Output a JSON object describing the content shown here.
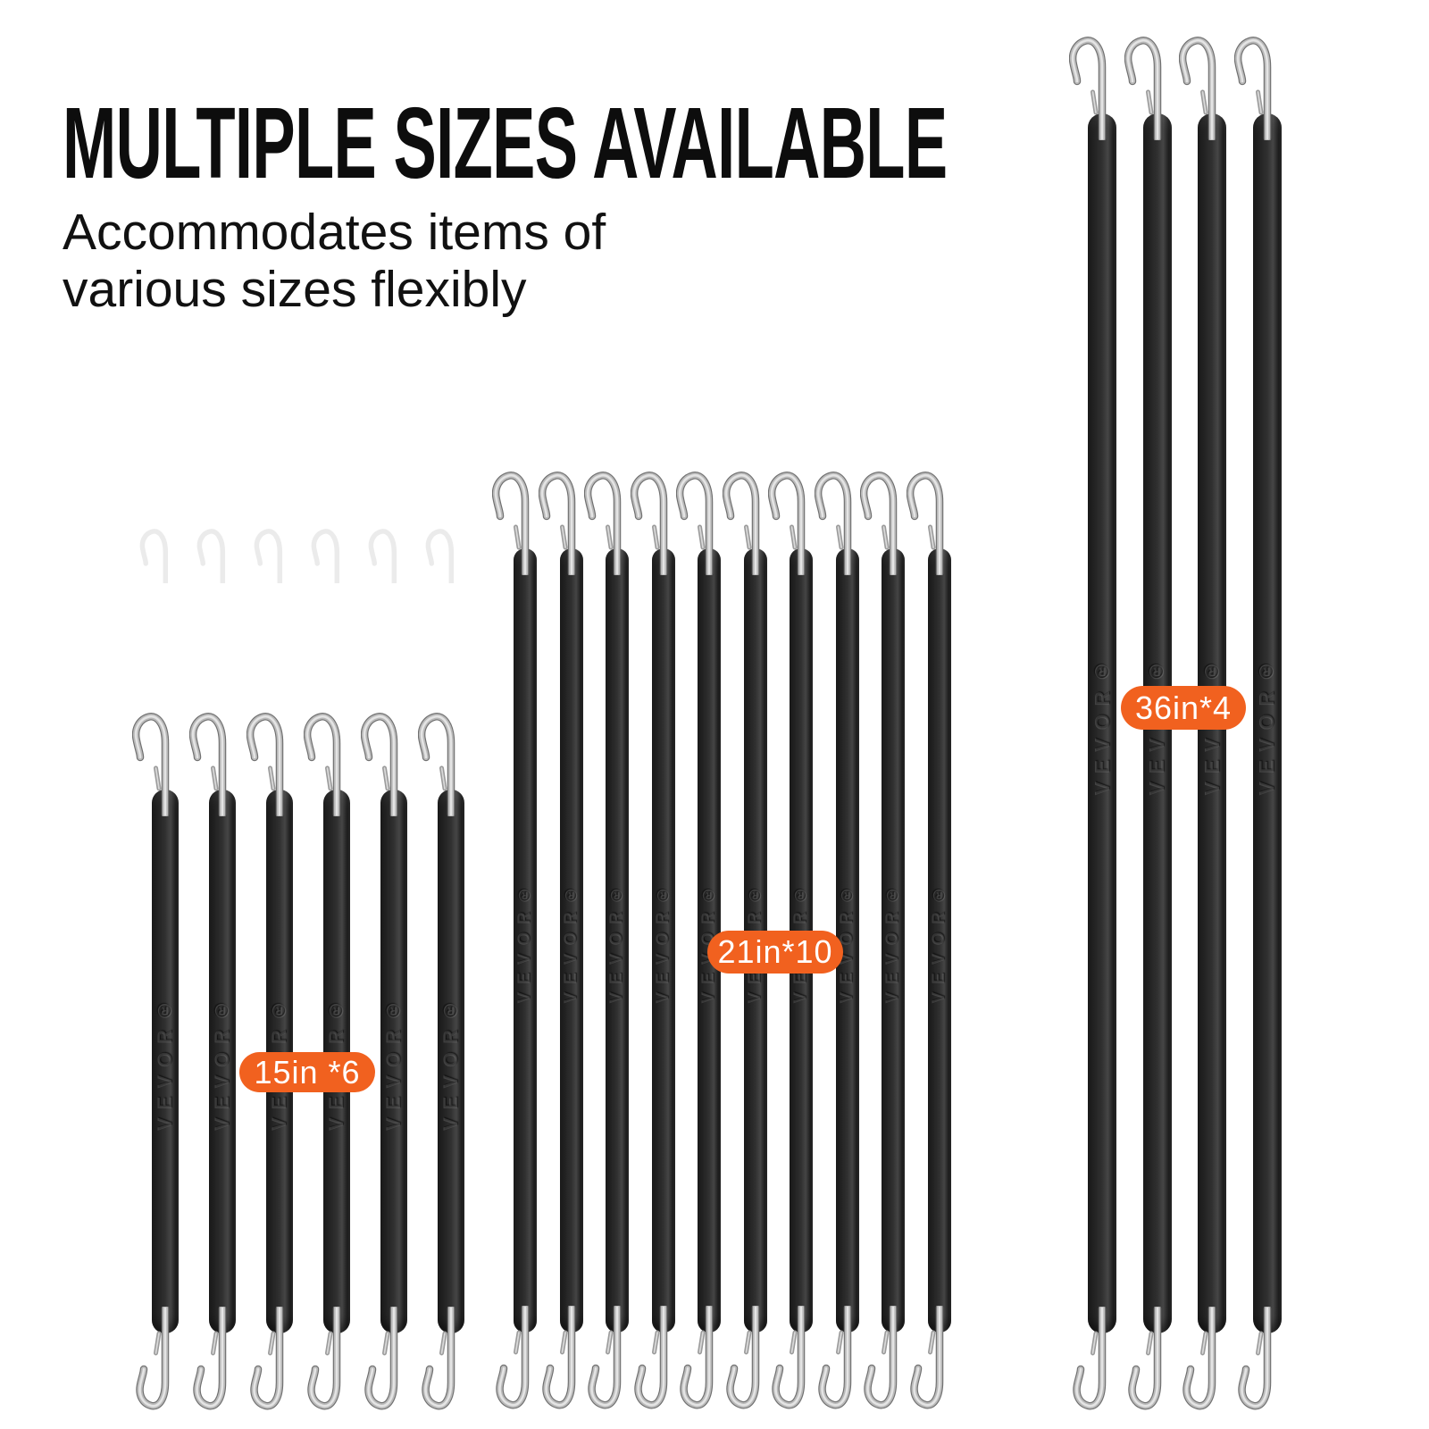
{
  "image": {
    "background": "#ffffff",
    "description_text_color": "#0d0d0d"
  },
  "header": {
    "title": "MULTIPLE SIZES AVAILABLE",
    "subtitle_line1": "Accommodates items of",
    "subtitle_line2": "various sizes flexibly"
  },
  "badge_style": {
    "background": "#F1611F",
    "text_color": "#ffffff"
  },
  "groups": [
    {
      "name": "15-inch-cords",
      "badge_label": "15in *6",
      "length_inches": 15,
      "count": 6
    },
    {
      "name": "21-inch-cords",
      "badge_label": "21in*10",
      "length_inches": 21,
      "count": 10
    },
    {
      "name": "36-inch-cords",
      "badge_label": "36in*4",
      "length_inches": 36,
      "count": 4
    }
  ],
  "cord": {
    "brand_embossed_text": "VEVOR®",
    "strap_color": "#2b2b2b",
    "hook_color": "#c6c6c6"
  }
}
